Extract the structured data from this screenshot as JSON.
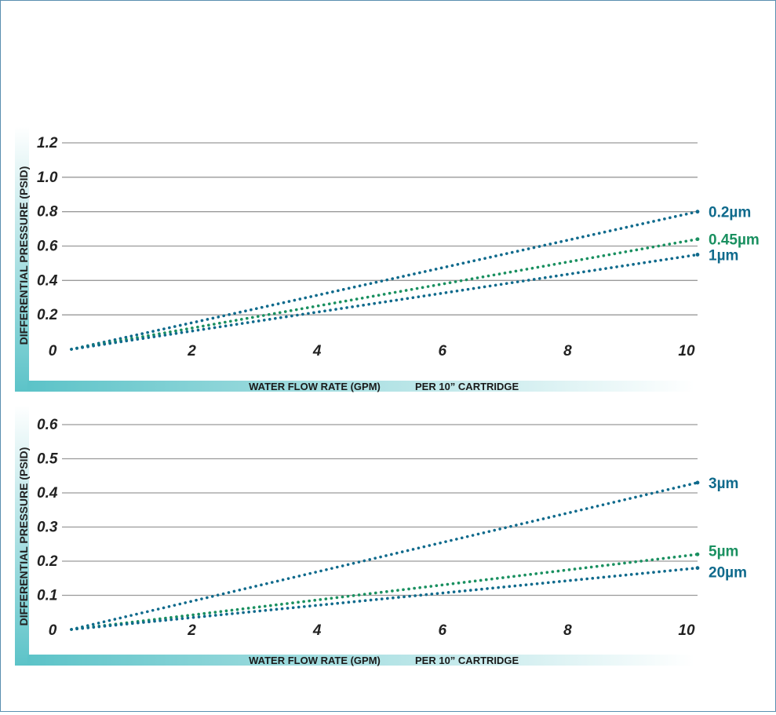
{
  "colors": {
    "blue": "#0f6a8c",
    "green": "#1a9060",
    "grid": "#9a9a9a",
    "text": "#222222",
    "band": "#5cc3c8"
  },
  "chart_data": [
    {
      "type": "line",
      "style": "dotted",
      "ylabel": "DIFFERENTIAL PRESSURE (PSID)",
      "xlabel": "WATER FLOW RATE (GPM)",
      "xlabel_suffix": "PER 10” CARTRIDGE",
      "xlim": [
        0,
        10
      ],
      "ylim": [
        0,
        1.2
      ],
      "x_ticks": [
        "0",
        "2",
        "4",
        "6",
        "8",
        "10"
      ],
      "y_ticks": [
        "0.2",
        "0.4",
        "0.6",
        "0.8",
        "1.0",
        "1.2"
      ],
      "grid": true,
      "series": [
        {
          "name": "0.2µm",
          "color": "blue",
          "x": [
            0,
            10
          ],
          "y": [
            0,
            0.8
          ]
        },
        {
          "name": "0.45µm",
          "color": "green",
          "x": [
            0,
            10
          ],
          "y": [
            0,
            0.64
          ]
        },
        {
          "name": "1µm",
          "color": "blue",
          "x": [
            0,
            10
          ],
          "y": [
            0,
            0.55
          ]
        }
      ]
    },
    {
      "type": "line",
      "style": "dotted",
      "ylabel": "DIFFERENTIAL PRESSURE (PSID)",
      "xlabel": "WATER FLOW RATE (GPM)",
      "xlabel_suffix": "PER 10” CARTRIDGE",
      "xlim": [
        0,
        10
      ],
      "ylim": [
        0,
        0.6
      ],
      "x_ticks": [
        "0",
        "2",
        "4",
        "6",
        "8",
        "10"
      ],
      "y_ticks": [
        "0.1",
        "0.2",
        "0.3",
        "0.4",
        "0.5",
        "0.6"
      ],
      "grid": true,
      "series": [
        {
          "name": "3µm",
          "color": "blue",
          "x": [
            0,
            10
          ],
          "y": [
            0,
            0.43
          ]
        },
        {
          "name": "5µm",
          "color": "green",
          "x": [
            0,
            10
          ],
          "y": [
            0,
            0.22
          ]
        },
        {
          "name": "20µm",
          "color": "blue",
          "x": [
            0,
            10
          ],
          "y": [
            0,
            0.18
          ]
        }
      ]
    }
  ]
}
